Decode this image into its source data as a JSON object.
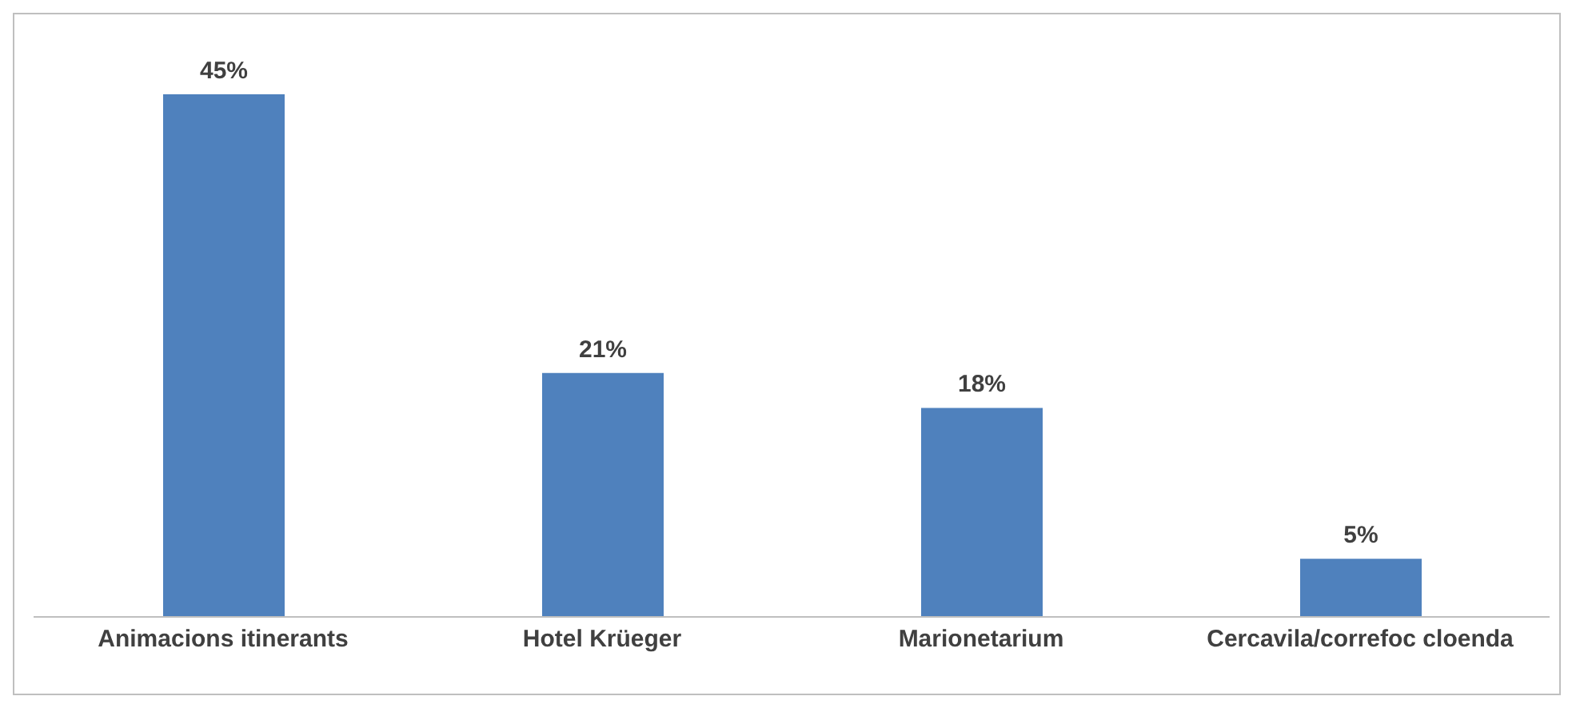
{
  "chart_data": {
    "type": "bar",
    "categories": [
      "Animacions itinerants",
      "Hotel Krüeger",
      "Marionetarium",
      "Cercavila/correfoc cloenda"
    ],
    "values": [
      45,
      21,
      18,
      5
    ],
    "color": "#4f81bd",
    "value_labels": [
      "45%",
      "21%",
      "18%",
      "5%"
    ]
  }
}
